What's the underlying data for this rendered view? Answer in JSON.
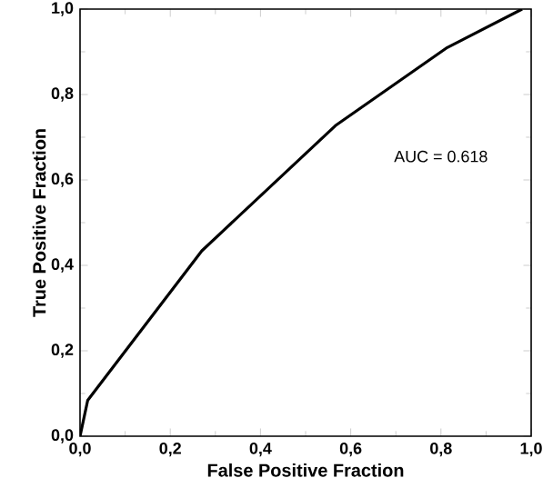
{
  "chart_data": {
    "type": "line",
    "xlabel": "False Positive Fraction",
    "ylabel": "True Positive Fraction",
    "annotations": [
      "AUC = 0.618"
    ],
    "x": [
      0,
      0.017,
      0.27,
      0.566,
      0.814,
      0.98
    ],
    "series": [
      {
        "color": "#000000",
        "values": [
          0,
          0.084,
          0.434,
          0.727,
          0.91,
          1.0
        ]
      }
    ],
    "xlim": [
      0,
      1
    ],
    "ylim": [
      0,
      1
    ],
    "xticks": [
      {
        "value": 0,
        "label": "0,0"
      },
      {
        "value": 0.2,
        "label": "0,2"
      },
      {
        "value": 0.4,
        "label": "0,4"
      },
      {
        "value": 0.6,
        "label": "0,6"
      },
      {
        "value": 0.8,
        "label": "0,8"
      },
      {
        "value": 1,
        "label": "1,0"
      }
    ],
    "yticks": [
      {
        "value": 0,
        "label": "0,0"
      },
      {
        "value": 0.2,
        "label": "0,2"
      },
      {
        "value": 0.4,
        "label": "0,4"
      },
      {
        "value": 0.6,
        "label": "0,6"
      },
      {
        "value": 0.8,
        "label": "0,8"
      },
      {
        "value": 1,
        "label": "1,0"
      }
    ],
    "grid": false,
    "legend": false,
    "marker": "none",
    "line_style": "solid"
  }
}
